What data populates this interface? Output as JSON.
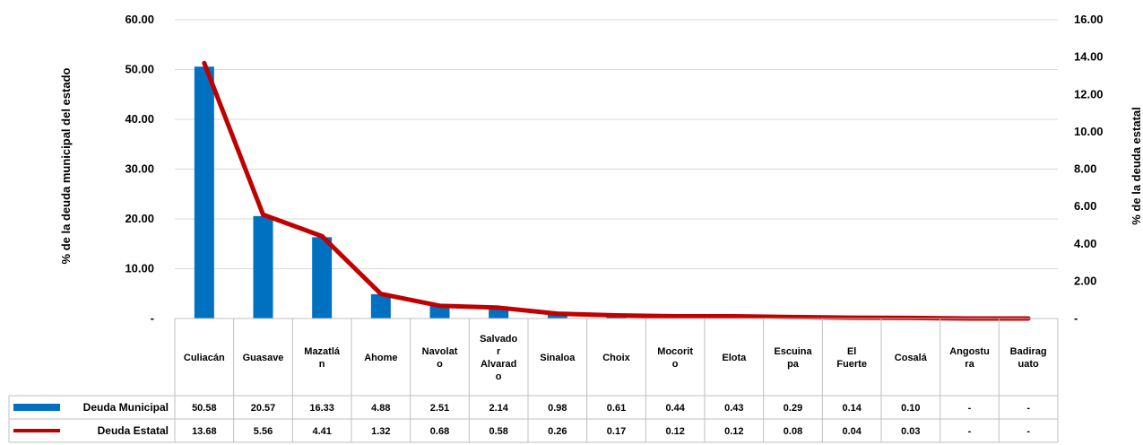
{
  "chart_data": {
    "type": "bar",
    "categories": [
      "Culiacán",
      "Guasave",
      "Mazatlán",
      "Ahome",
      "Navolato",
      "Salvador Alvarado",
      "Sinaloa",
      "Choix",
      "Mocorito",
      "Elota",
      "Escuinapa",
      "El Fuerte",
      "Cosalá",
      "Angostura",
      "Badiraguato"
    ],
    "category_lines": [
      [
        "Culiacán"
      ],
      [
        "Guasave"
      ],
      [
        "Mazatlá",
        "n"
      ],
      [
        "Ahome"
      ],
      [
        "Navolat",
        "o"
      ],
      [
        "Salvado",
        "r",
        "Alvarad",
        "o"
      ],
      [
        "Sinaloa"
      ],
      [
        "Choix"
      ],
      [
        "Mocorit",
        "o"
      ],
      [
        "Elota"
      ],
      [
        "Escuina",
        "pa"
      ],
      [
        "El",
        "Fuerte"
      ],
      [
        "Cosalá"
      ],
      [
        "Angostu",
        "ra"
      ],
      [
        "Badirag",
        "uato"
      ]
    ],
    "series": [
      {
        "name": "Deuda Municipal",
        "type": "bar",
        "axis": "left",
        "color": "#0070C0",
        "values": [
          50.58,
          20.57,
          16.33,
          4.88,
          2.51,
          2.14,
          0.98,
          0.61,
          0.44,
          0.43,
          0.29,
          0.14,
          0.1,
          0,
          0
        ],
        "labels": [
          "50.58",
          "20.57",
          "16.33",
          "4.88",
          "2.51",
          "2.14",
          "0.98",
          "0.61",
          "0.44",
          "0.43",
          "0.29",
          "0.14",
          "0.10",
          "-",
          "-"
        ]
      },
      {
        "name": "Deuda Estatal",
        "type": "line",
        "axis": "right",
        "color": "#C00000",
        "values": [
          13.68,
          5.56,
          4.41,
          1.32,
          0.68,
          0.58,
          0.26,
          0.17,
          0.12,
          0.12,
          0.08,
          0.04,
          0.03,
          0,
          0
        ],
        "labels": [
          "13.68",
          "5.56",
          "4.41",
          "1.32",
          "0.68",
          "0.58",
          "0.26",
          "0.17",
          "0.12",
          "0.12",
          "0.08",
          "0.04",
          "0.03",
          "-",
          "-"
        ]
      }
    ],
    "ylabel": "% de la deuda municipal del estado",
    "y2label": "% de la deuda estatal",
    "ylim": [
      0,
      60
    ],
    "y2lim": [
      0,
      16
    ],
    "yticks": [
      "-",
      "10.00",
      "20.00",
      "30.00",
      "40.00",
      "50.00",
      "60.00"
    ],
    "y2ticks": [
      "-",
      "2.00",
      "4.00",
      "6.00",
      "8.00",
      "10.00",
      "12.00",
      "14.00",
      "16.00"
    ],
    "grid": true,
    "legend": "data-table"
  }
}
